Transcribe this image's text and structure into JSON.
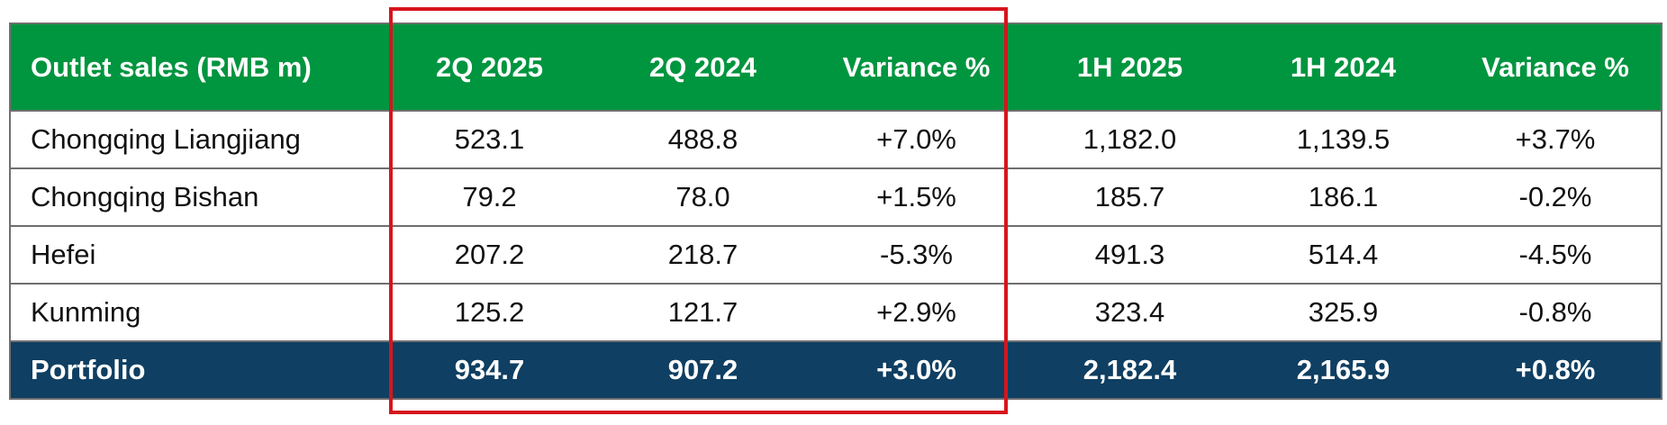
{
  "table": {
    "headers": [
      "Outlet sales (RMB m)",
      "2Q 2025",
      "2Q 2024",
      "Variance %",
      "1H 2025",
      "1H 2024",
      "Variance %"
    ],
    "rows": [
      [
        "Chongqing Liangjiang",
        "523.1",
        "488.8",
        "+7.0%",
        "1,182.0",
        "1,139.5",
        "+3.7%"
      ],
      [
        "Chongqing Bishan",
        "79.2",
        "78.0",
        "+1.5%",
        "185.7",
        "186.1",
        "-0.2%"
      ],
      [
        "Hefei",
        "207.2",
        "218.7",
        "-5.3%",
        "491.3",
        "514.4",
        "-4.5%"
      ],
      [
        "Kunming",
        "125.2",
        "121.7",
        "+2.9%",
        "323.4",
        "325.9",
        "-0.8%"
      ]
    ],
    "total": [
      "Portfolio",
      "934.7",
      "907.2",
      "+3.0%",
      "2,182.4",
      "2,165.9",
      "+0.8%"
    ]
  },
  "colors": {
    "header_bg": "#00953f",
    "total_bg": "#0f3f62",
    "highlight_border": "#d7141d"
  }
}
